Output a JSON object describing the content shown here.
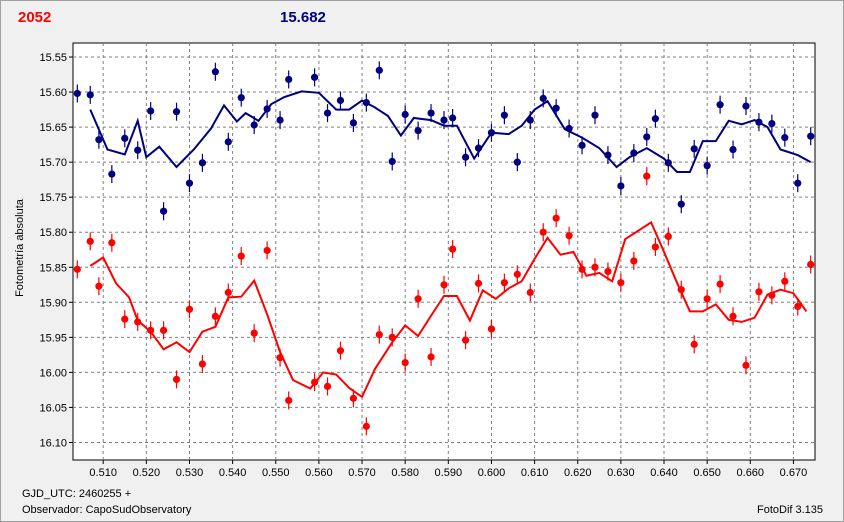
{
  "header": {
    "left_label": "2052",
    "center_label": "15.682"
  },
  "footer": {
    "gjd": "GJD_UTC: 2460255 +",
    "observer": "Observador: CapoSudObservatory",
    "software": "FotoDif 3.135"
  },
  "colors": {
    "blue": "#000080",
    "red": "#ff0000",
    "grid": "#808080",
    "plot_bg": "#ffffff"
  },
  "chart_data": {
    "type": "scatter",
    "title": "",
    "xlabel": "",
    "ylabel": "Fotometría absoluta",
    "xlim": [
      0.503,
      0.675
    ],
    "ylim": [
      16.125,
      15.53
    ],
    "y_inverted": true,
    "grid": true,
    "x_ticks": [
      "0.510",
      "0.520",
      "0.530",
      "0.540",
      "0.550",
      "0.560",
      "0.570",
      "0.580",
      "0.590",
      "0.600",
      "0.610",
      "0.620",
      "0.630",
      "0.640",
      "0.650",
      "0.660",
      "0.670"
    ],
    "y_ticks": [
      "15.55",
      "15.60",
      "15.65",
      "15.70",
      "15.75",
      "15.80",
      "15.85",
      "15.90",
      "15.95",
      "16.00",
      "16.05",
      "16.10"
    ],
    "series": [
      {
        "color": "#000080",
        "points": [
          [
            0.504,
            15.602
          ],
          [
            0.507,
            15.604
          ],
          [
            0.509,
            15.668
          ],
          [
            0.512,
            15.717
          ],
          [
            0.515,
            15.666
          ],
          [
            0.518,
            15.683
          ],
          [
            0.521,
            15.627
          ],
          [
            0.524,
            15.77
          ],
          [
            0.527,
            15.628
          ],
          [
            0.53,
            15.73
          ],
          [
            0.533,
            15.701
          ],
          [
            0.536,
            15.571
          ],
          [
            0.539,
            15.671
          ],
          [
            0.542,
            15.608
          ],
          [
            0.545,
            15.647
          ],
          [
            0.548,
            15.624
          ],
          [
            0.551,
            15.64
          ],
          [
            0.553,
            15.582
          ],
          [
            0.559,
            15.579
          ],
          [
            0.562,
            15.63
          ],
          [
            0.565,
            15.612
          ],
          [
            0.568,
            15.644
          ],
          [
            0.571,
            15.615
          ],
          [
            0.574,
            15.569
          ],
          [
            0.577,
            15.699
          ],
          [
            0.58,
            15.632
          ],
          [
            0.583,
            15.655
          ],
          [
            0.586,
            15.63
          ],
          [
            0.589,
            15.64
          ],
          [
            0.591,
            15.637
          ],
          [
            0.594,
            15.693
          ],
          [
            0.597,
            15.68
          ],
          [
            0.6,
            15.658
          ],
          [
            0.603,
            15.633
          ],
          [
            0.606,
            15.7
          ],
          [
            0.609,
            15.64
          ],
          [
            0.612,
            15.609
          ],
          [
            0.615,
            15.623
          ],
          [
            0.618,
            15.652
          ],
          [
            0.621,
            15.676
          ],
          [
            0.624,
            15.633
          ],
          [
            0.627,
            15.69
          ],
          [
            0.63,
            15.734
          ],
          [
            0.633,
            15.687
          ],
          [
            0.636,
            15.664
          ],
          [
            0.638,
            15.638
          ],
          [
            0.641,
            15.701
          ],
          [
            0.644,
            15.76
          ],
          [
            0.647,
            15.681
          ],
          [
            0.65,
            15.705
          ],
          [
            0.653,
            15.618
          ],
          [
            0.656,
            15.682
          ],
          [
            0.659,
            15.62
          ],
          [
            0.662,
            15.643
          ],
          [
            0.665,
            15.645
          ],
          [
            0.668,
            15.665
          ],
          [
            0.671,
            15.73
          ],
          [
            0.674,
            15.663
          ],
          [
            0.677,
            15.703
          ]
        ],
        "trend": [
          [
            0.507,
            15.625
          ],
          [
            0.511,
            15.682
          ],
          [
            0.515,
            15.689
          ],
          [
            0.518,
            15.641
          ],
          [
            0.52,
            15.693
          ],
          [
            0.523,
            15.678
          ],
          [
            0.527,
            15.707
          ],
          [
            0.531,
            15.682
          ],
          [
            0.535,
            15.652
          ],
          [
            0.538,
            15.619
          ],
          [
            0.541,
            15.642
          ],
          [
            0.543,
            15.63
          ],
          [
            0.546,
            15.641
          ],
          [
            0.549,
            15.617
          ],
          [
            0.552,
            15.607
          ],
          [
            0.556,
            15.599
          ],
          [
            0.56,
            15.601
          ],
          [
            0.564,
            15.625
          ],
          [
            0.567,
            15.625
          ],
          [
            0.57,
            15.612
          ],
          [
            0.573,
            15.622
          ],
          [
            0.576,
            15.634
          ],
          [
            0.579,
            15.662
          ],
          [
            0.582,
            15.637
          ],
          [
            0.586,
            15.64
          ],
          [
            0.589,
            15.648
          ],
          [
            0.592,
            15.648
          ],
          [
            0.596,
            15.695
          ],
          [
            0.6,
            15.658
          ],
          [
            0.604,
            15.66
          ],
          [
            0.607,
            15.648
          ],
          [
            0.61,
            15.625
          ],
          [
            0.613,
            15.613
          ],
          [
            0.617,
            15.653
          ],
          [
            0.621,
            15.665
          ],
          [
            0.625,
            15.68
          ],
          [
            0.629,
            15.707
          ],
          [
            0.632,
            15.693
          ],
          [
            0.636,
            15.68
          ],
          [
            0.64,
            15.695
          ],
          [
            0.643,
            15.714
          ],
          [
            0.646,
            15.714
          ],
          [
            0.649,
            15.67
          ],
          [
            0.652,
            15.67
          ],
          [
            0.655,
            15.641
          ],
          [
            0.658,
            15.646
          ],
          [
            0.661,
            15.64
          ],
          [
            0.664,
            15.65
          ],
          [
            0.667,
            15.682
          ],
          [
            0.671,
            15.69
          ],
          [
            0.674,
            15.7
          ]
        ]
      },
      {
        "color": "#ff0000",
        "points": [
          [
            0.504,
            15.853
          ],
          [
            0.507,
            15.813
          ],
          [
            0.509,
            15.877
          ],
          [
            0.512,
            15.815
          ],
          [
            0.515,
            15.924
          ],
          [
            0.518,
            15.928
          ],
          [
            0.521,
            15.94
          ],
          [
            0.524,
            15.94
          ],
          [
            0.527,
            16.01
          ],
          [
            0.53,
            15.91
          ],
          [
            0.533,
            15.988
          ],
          [
            0.536,
            15.92
          ],
          [
            0.539,
            15.886
          ],
          [
            0.542,
            15.834
          ],
          [
            0.545,
            15.944
          ],
          [
            0.548,
            15.826
          ],
          [
            0.551,
            15.979
          ],
          [
            0.553,
            16.04
          ],
          [
            0.559,
            16.014
          ],
          [
            0.562,
            16.02
          ],
          [
            0.565,
            15.969
          ],
          [
            0.568,
            16.037
          ],
          [
            0.571,
            16.077
          ],
          [
            0.574,
            15.946
          ],
          [
            0.577,
            15.95
          ],
          [
            0.58,
            15.986
          ],
          [
            0.583,
            15.895
          ],
          [
            0.586,
            15.978
          ],
          [
            0.589,
            15.875
          ],
          [
            0.591,
            15.824
          ],
          [
            0.594,
            15.954
          ],
          [
            0.597,
            15.873
          ],
          [
            0.6,
            15.938
          ],
          [
            0.603,
            15.872
          ],
          [
            0.606,
            15.86
          ],
          [
            0.609,
            15.886
          ],
          [
            0.612,
            15.8
          ],
          [
            0.615,
            15.78
          ],
          [
            0.618,
            15.805
          ],
          [
            0.621,
            15.853
          ],
          [
            0.624,
            15.85
          ],
          [
            0.627,
            15.856
          ],
          [
            0.63,
            15.872
          ],
          [
            0.633,
            15.841
          ],
          [
            0.636,
            15.72
          ],
          [
            0.638,
            15.821
          ],
          [
            0.641,
            15.806
          ],
          [
            0.644,
            15.882
          ],
          [
            0.647,
            15.96
          ],
          [
            0.65,
            15.895
          ],
          [
            0.653,
            15.874
          ],
          [
            0.656,
            15.92
          ],
          [
            0.659,
            15.99
          ],
          [
            0.662,
            15.885
          ],
          [
            0.665,
            15.89
          ],
          [
            0.668,
            15.87
          ],
          [
            0.671,
            15.906
          ],
          [
            0.674,
            15.846
          ],
          [
            0.677,
            15.988
          ]
        ],
        "trend": [
          [
            0.507,
            15.848
          ],
          [
            0.51,
            15.836
          ],
          [
            0.513,
            15.873
          ],
          [
            0.516,
            15.893
          ],
          [
            0.518,
            15.926
          ],
          [
            0.521,
            15.942
          ],
          [
            0.524,
            15.967
          ],
          [
            0.527,
            15.957
          ],
          [
            0.53,
            15.971
          ],
          [
            0.533,
            15.942
          ],
          [
            0.536,
            15.935
          ],
          [
            0.539,
            15.893
          ],
          [
            0.542,
            15.892
          ],
          [
            0.545,
            15.869
          ],
          [
            0.548,
            15.917
          ],
          [
            0.551,
            15.971
          ],
          [
            0.554,
            16.011
          ],
          [
            0.558,
            16.023
          ],
          [
            0.561,
            16.0
          ],
          [
            0.564,
            16.003
          ],
          [
            0.567,
            16.022
          ],
          [
            0.57,
            16.035
          ],
          [
            0.573,
            15.995
          ],
          [
            0.577,
            15.957
          ],
          [
            0.58,
            15.933
          ],
          [
            0.583,
            15.948
          ],
          [
            0.586,
            15.919
          ],
          [
            0.589,
            15.891
          ],
          [
            0.592,
            15.891
          ],
          [
            0.595,
            15.926
          ],
          [
            0.598,
            15.883
          ],
          [
            0.601,
            15.895
          ],
          [
            0.604,
            15.88
          ],
          [
            0.607,
            15.87
          ],
          [
            0.61,
            15.838
          ],
          [
            0.613,
            15.808
          ],
          [
            0.616,
            15.832
          ],
          [
            0.619,
            15.828
          ],
          [
            0.622,
            15.862
          ],
          [
            0.625,
            15.858
          ],
          [
            0.628,
            15.87
          ],
          [
            0.631,
            15.81
          ],
          [
            0.634,
            15.798
          ],
          [
            0.637,
            15.786
          ],
          [
            0.64,
            15.828
          ],
          [
            0.643,
            15.872
          ],
          [
            0.646,
            15.913
          ],
          [
            0.649,
            15.913
          ],
          [
            0.652,
            15.903
          ],
          [
            0.655,
            15.925
          ],
          [
            0.658,
            15.928
          ],
          [
            0.661,
            15.922
          ],
          [
            0.664,
            15.889
          ],
          [
            0.667,
            15.882
          ],
          [
            0.67,
            15.887
          ],
          [
            0.673,
            15.913
          ]
        ]
      }
    ]
  }
}
